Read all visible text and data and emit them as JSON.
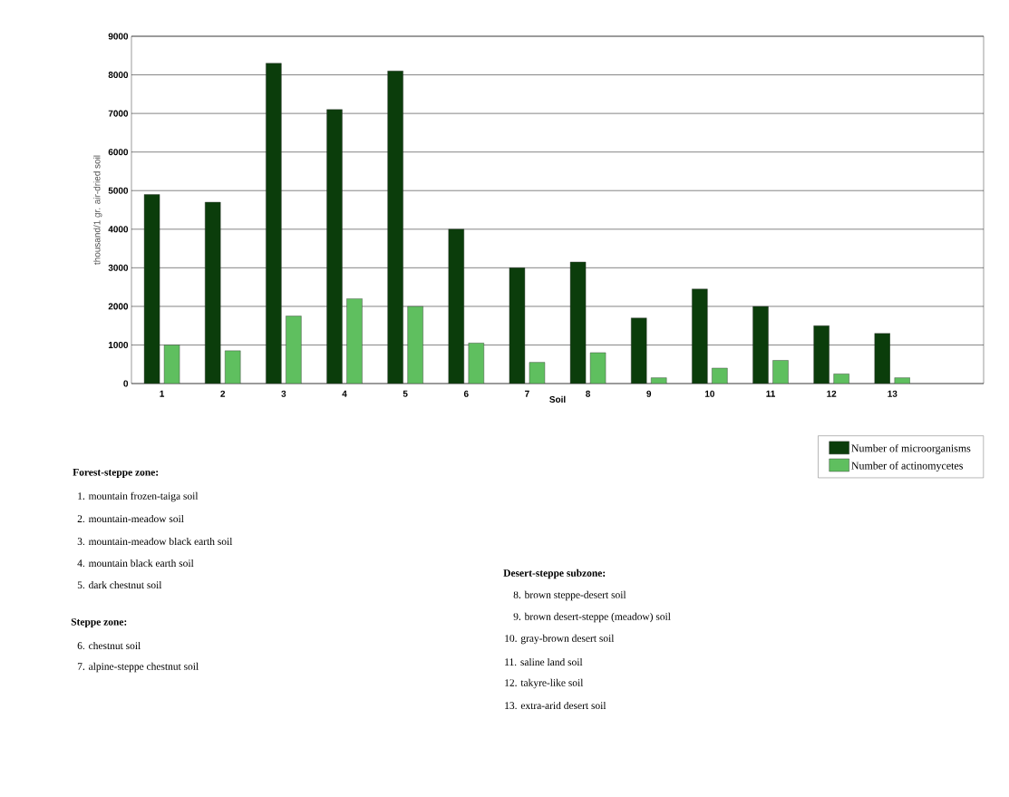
{
  "chart_data": {
    "type": "bar",
    "xlabel": "Soil",
    "ylabel": "thousand/1 gr. air-dried soil",
    "categories": [
      "1",
      "2",
      "3",
      "4",
      "5",
      "6",
      "7",
      "8",
      "9",
      "10",
      "11",
      "12",
      "13",
      null
    ],
    "series": [
      {
        "name": "Number of microorganisms",
        "color": "#0b3d0b",
        "values": [
          4900,
          4700,
          8300,
          7100,
          8100,
          4000,
          3000,
          3150,
          1700,
          2450,
          2000,
          1500,
          1300,
          null
        ]
      },
      {
        "name": "Number of actinomycetes",
        "color": "#5fbf5f",
        "values": [
          1000,
          850,
          1750,
          2200,
          2000,
          1050,
          550,
          800,
          150,
          400,
          600,
          250,
          150,
          null
        ]
      }
    ],
    "ylim": [
      0,
      9000
    ],
    "yticks": [
      0,
      1000,
      2000,
      3000,
      4000,
      5000,
      6000,
      7000,
      8000,
      9000
    ],
    "grid": "y",
    "legend": "bottom right",
    "annotations": [
      "Forest-steppe zone:",
      "1. mountain frozen-taiga soil",
      "2. mountain-meadow soil",
      "3. mountain-meadow black earth soil",
      "4. mountain black earth soil",
      "5. dark chestnut soil",
      "Steppe zone:",
      "6. chestnut soil",
      "7. alpine-steppe chestnut soil",
      "Desert-steppe subzone:",
      "8. brown steppe-desert soil",
      "9. brown desert-steppe (meadow) soil",
      "10. gray-brown desert soil",
      "11. saline land soil",
      "12. takyre-like soil",
      "13. extra-arid desert soil"
    ]
  }
}
